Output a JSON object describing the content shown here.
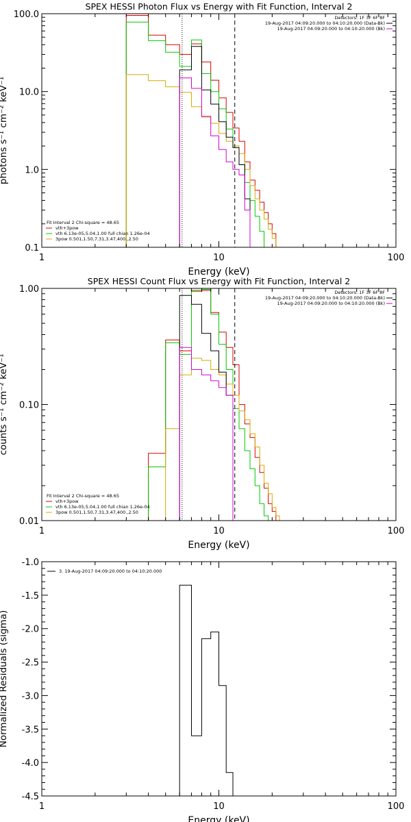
{
  "colors": {
    "black": "#000000",
    "red": "#d40000",
    "green": "#00c800",
    "magenta": "#d000d0",
    "yellow": "#d8a800",
    "dark": "#000000"
  },
  "chart_data": [
    {
      "type": "line",
      "title": "SPEX HESSI Photon Flux vs Energy with Fit Function, Interval 2",
      "xlabel": "Energy (keV)",
      "ylabel": "photons s⁻¹ cm⁻² keV⁻¹",
      "xscale": "log",
      "yscale": "log",
      "xlim": [
        1,
        100
      ],
      "ylim": [
        0.1,
        100
      ],
      "xticks": [
        1,
        10,
        100
      ],
      "xticklabels": [
        "1",
        "10",
        "100"
      ],
      "yticks": [
        0.1,
        1,
        10,
        100
      ],
      "yticklabels": [
        "0.1",
        "1.0",
        "10.0",
        "100.0"
      ],
      "legend_top_right": [
        {
          "text": "Detectors: 1F 3F 6F 8F",
          "color": "black"
        },
        {
          "text": "19-Aug-2017 04:09:20.000 to 04:10:20.000 (Data-Bk)",
          "color": "black"
        },
        {
          "text": "19-Aug-2017 04:09:20.000 to 04:10:20.000 (Bk)",
          "color": "magenta"
        }
      ],
      "legend_bottom_left": [
        {
          "text": "Fit Interval 2   Chi-square = 48.65",
          "color": "black"
        },
        {
          "text": "vth+3pow",
          "color": "red"
        },
        {
          "text": "vth 6.13e-05,5.04,1.00   full chian 1.26e-04",
          "color": "green"
        },
        {
          "text": "3pow 0.501,1.50,7.31,3.47,400.,2.50",
          "color": "yellow"
        }
      ],
      "vlines": [
        {
          "x": 6.2,
          "style": "dotted",
          "color": "black"
        },
        {
          "x": 12.3,
          "style": "dashed",
          "color": "black"
        }
      ],
      "edges": [
        3,
        4,
        5,
        6,
        7,
        8,
        9,
        10,
        11,
        12,
        13,
        14,
        15,
        16,
        17,
        18,
        19,
        20,
        21,
        22,
        23,
        25
      ],
      "series": [
        {
          "color": "red",
          "values": [
            95,
            53,
            40,
            30,
            41,
            24,
            14,
            8.3,
            5.4,
            3.4,
            2.3,
            1.25,
            0.73,
            0.54,
            0.38,
            0.28,
            0.2,
            0.15
          ]
        },
        {
          "color": "green",
          "values": [
            78,
            45,
            32,
            21,
            46,
            17,
            10,
            6.0,
            3.3,
            2.0,
            1.15,
            0.68,
            0.4,
            0.25,
            0.16,
            0.1
          ]
        },
        {
          "color": "yellow",
          "values": [
            16.5,
            13.8,
            11.5,
            9.8,
            6.4,
            4.7,
            3.9,
            2.9,
            2.3,
            2.0,
            1.6,
            1.0,
            0.62,
            0.42,
            0.3,
            0.23,
            0.17,
            0.13,
            0.1
          ]
        },
        {
          "color": "black",
          "start": 6,
          "values": [
            19,
            38,
            10.5,
            6.9,
            4.1,
            2.6,
            1.9,
            1.15,
            0.42
          ]
        },
        {
          "color": "magenta",
          "start": 6,
          "values": [
            15,
            11,
            4.8,
            2.7,
            1.8,
            1.25,
            1.0,
            0.85,
            0.3
          ]
        }
      ]
    },
    {
      "type": "line",
      "title": "SPEX HESSI Count Flux vs Energy with Fit Function, Interval 2",
      "xlabel": "Energy (keV)",
      "ylabel": "counts s⁻¹ cm⁻² keV⁻¹",
      "xscale": "log",
      "yscale": "log",
      "xlim": [
        1,
        100
      ],
      "ylim": [
        0.01,
        1
      ],
      "xticks": [
        1,
        10,
        100
      ],
      "xticklabels": [
        "1",
        "10",
        "100"
      ],
      "yticks": [
        0.01,
        0.1,
        1
      ],
      "yticklabels": [
        "0.01",
        "0.10",
        "1.00"
      ],
      "legend_top_right": [
        {
          "text": "Detectors: 1F 3F 6F 8F",
          "color": "black"
        },
        {
          "text": "19-Aug-2017 04:09:20.000 to 04:10:20.000 (Data-Bk)",
          "color": "black"
        },
        {
          "text": "19-Aug-2017 04:09:20.000 to 04:10:20.000 (Bk)",
          "color": "magenta"
        }
      ],
      "legend_bottom_left": [
        {
          "text": "Fit Interval 2   Chi-square = 48.65",
          "color": "black"
        },
        {
          "text": "vth+3pow",
          "color": "red"
        },
        {
          "text": "vth 6.13e-05,5.04,1.00   full chian 1.26e-04",
          "color": "green"
        },
        {
          "text": "3pow 0.501,1.50,7.31,3.47,400.,2.50",
          "color": "yellow"
        }
      ],
      "vlines": [
        {
          "x": 6.2,
          "style": "dotted",
          "color": "black"
        },
        {
          "x": 12.3,
          "style": "dashed",
          "color": "black"
        }
      ],
      "edges": [
        4,
        5,
        6,
        7,
        8,
        9,
        10,
        11,
        12,
        13,
        14,
        15,
        16,
        17,
        18,
        19,
        20,
        21,
        22,
        23,
        25
      ],
      "series": [
        {
          "color": "red",
          "values": [
            0.038,
            0.36,
            0.29,
            0.96,
            0.96,
            0.62,
            0.42,
            0.31,
            0.22,
            0.1,
            0.068,
            0.052,
            0.035,
            0.026,
            0.019,
            0.014,
            0.012,
            0.01
          ]
        },
        {
          "color": "green",
          "values": [
            0.029,
            0.34,
            0.27,
            0.94,
            0.98,
            0.6,
            0.33,
            0.2,
            0.092,
            0.062,
            0.04,
            0.028,
            0.02,
            0.014,
            0.011
          ]
        },
        {
          "color": "yellow",
          "start": 5,
          "values": [
            0.062,
            0.18,
            0.25,
            0.24,
            0.2,
            0.18,
            0.15,
            0.12,
            0.088,
            0.074,
            0.056,
            0.043,
            0.03,
            0.021,
            0.017,
            0.013,
            0.011,
            0.01,
            0.01
          ]
        },
        {
          "color": "black",
          "start": 6,
          "values": [
            0.87,
            0.73,
            0.41,
            0.29,
            0.19,
            0.12,
            0.01
          ]
        },
        {
          "color": "magenta",
          "start": 6,
          "values": [
            0.31,
            0.2,
            0.18,
            0.16,
            0.14,
            0.12,
            0.01
          ]
        }
      ]
    },
    {
      "type": "line",
      "title": "",
      "xlabel": "Energy (keV)",
      "ylabel": "Normalized Residuals (sigma)",
      "xscale": "log",
      "yscale": "linear",
      "xlim": [
        1,
        100
      ],
      "ylim": [
        -4.5,
        -1.0
      ],
      "xticks": [
        1,
        10,
        100
      ],
      "xticklabels": [
        "1",
        "10",
        "100"
      ],
      "yticks": [
        -4.5,
        -4.0,
        -3.5,
        -3.0,
        -2.5,
        -2.0,
        -1.5,
        -1.0
      ],
      "yticklabels": [
        "-4.5",
        "-4.0",
        "-3.5",
        "-3.0",
        "-2.5",
        "-2.0",
        "-1.5",
        "-1.0"
      ],
      "legend_top_left": [
        {
          "text": "3. 19-Aug-2017 04:09:20.000 to 04:10:20.000",
          "color": "black"
        }
      ],
      "edges": [
        6,
        7,
        8,
        9,
        10,
        11,
        12
      ],
      "series": [
        {
          "color": "black",
          "values": [
            -1.35,
            -3.6,
            -2.15,
            -2.05,
            -2.85,
            -4.15
          ]
        }
      ]
    }
  ]
}
